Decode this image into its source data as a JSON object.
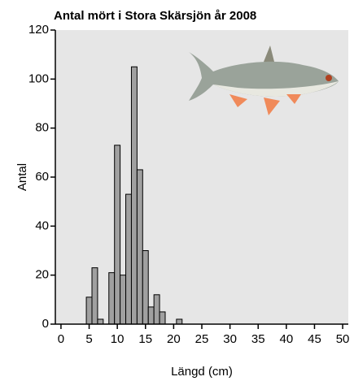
{
  "chart_data": {
    "type": "histogram",
    "title": "Antal mört i Stora Skärsjön år 2008",
    "xlabel": "Längd (cm)",
    "ylabel": "Antal",
    "bins": [
      4.5,
      5.5,
      6.5,
      7.5,
      8.5,
      9.5,
      10.5,
      11.5,
      12.5,
      13.5,
      14.5,
      15.5,
      16.5,
      17.5,
      18.5,
      19.5,
      20.5,
      21.5
    ],
    "counts": [
      11,
      23,
      2,
      0,
      21,
      73,
      20,
      53,
      105,
      63,
      30,
      7,
      12,
      5,
      0,
      0,
      2
    ],
    "color": "#a0a0a0",
    "xlim": [
      -1,
      51
    ],
    "xticks": [
      0,
      5,
      10,
      15,
      20,
      25,
      30,
      35,
      40,
      45,
      50
    ],
    "ylim": [
      0,
      120
    ],
    "yticks": [
      0,
      20,
      40,
      60,
      80,
      100,
      120
    ],
    "grid": false
  }
}
